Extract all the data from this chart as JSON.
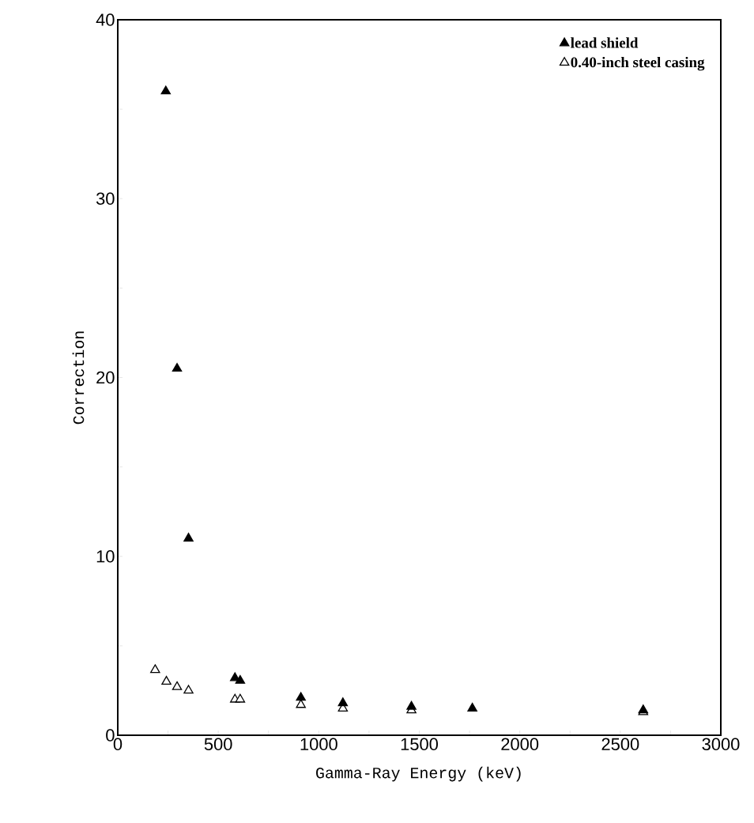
{
  "chart_data": {
    "type": "scatter",
    "xlabel": "Gamma-Ray Energy  (keV)",
    "ylabel": "Correction",
    "xlim": [
      0,
      3000
    ],
    "ylim": [
      0,
      40
    ],
    "xticks": [
      0,
      500,
      1000,
      1500,
      2000,
      2500,
      3000
    ],
    "yticks": [
      0,
      10,
      20,
      30,
      40
    ],
    "grid": false,
    "legend": "top right",
    "marker": "triangle",
    "series": [
      {
        "name": "lead shield",
        "color": "#000000",
        "x": [
          239,
          295,
          352,
          583,
          609,
          911,
          1120,
          1461,
          1764,
          2614
        ],
        "values": [
          36.0,
          20.5,
          11.0,
          3.2,
          3.05,
          2.1,
          1.8,
          1.6,
          1.5,
          1.4
        ]
      },
      {
        "name": "0.40-inch steel casing",
        "color": "#000000",
        "x": [
          186,
          242,
          295,
          352,
          583,
          609,
          911,
          1120,
          1461,
          2614
        ],
        "values": [
          3.65,
          3.0,
          2.7,
          2.5,
          2.0,
          2.0,
          1.7,
          1.5,
          1.4,
          1.3
        ]
      }
    ]
  }
}
